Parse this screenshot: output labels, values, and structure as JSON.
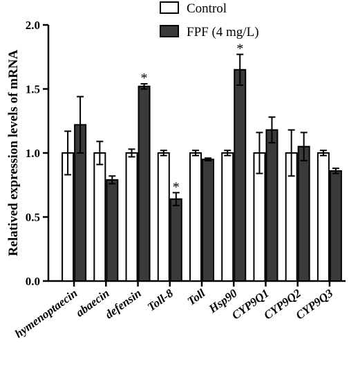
{
  "chart_data": {
    "type": "bar",
    "ylabel": "Relatived expression levels of mRNA",
    "xlabel": "",
    "ylim": [
      0.0,
      2.0
    ],
    "yticks": [
      "0.0",
      "0.5",
      "1.0",
      "1.5",
      "2.0"
    ],
    "categories": [
      "hymenoptaecin",
      "abaecin",
      "defensin",
      "Toll-8",
      "Toll",
      "Hsp90",
      "CYP9Q1",
      "CYP9Q2",
      "CYP9Q3"
    ],
    "series": [
      {
        "name": "Control",
        "color": "#ffffff",
        "values": [
          1.0,
          1.0,
          1.0,
          1.0,
          1.0,
          1.0,
          1.0,
          1.0,
          1.0
        ],
        "errors": [
          0.17,
          0.09,
          0.03,
          0.02,
          0.02,
          0.02,
          0.16,
          0.18,
          0.02
        ]
      },
      {
        "name": "FPF (4 mg/L)",
        "color": "#3a3a3a",
        "values": [
          1.22,
          0.79,
          1.52,
          0.64,
          0.95,
          1.65,
          1.18,
          1.05,
          0.86
        ],
        "errors": [
          0.22,
          0.03,
          0.02,
          0.05,
          0.01,
          0.12,
          0.1,
          0.11,
          0.02
        ],
        "significance": [
          "",
          "",
          "*",
          "*",
          "",
          "*",
          "",
          "",
          ""
        ]
      }
    ],
    "legend": "top-right"
  }
}
